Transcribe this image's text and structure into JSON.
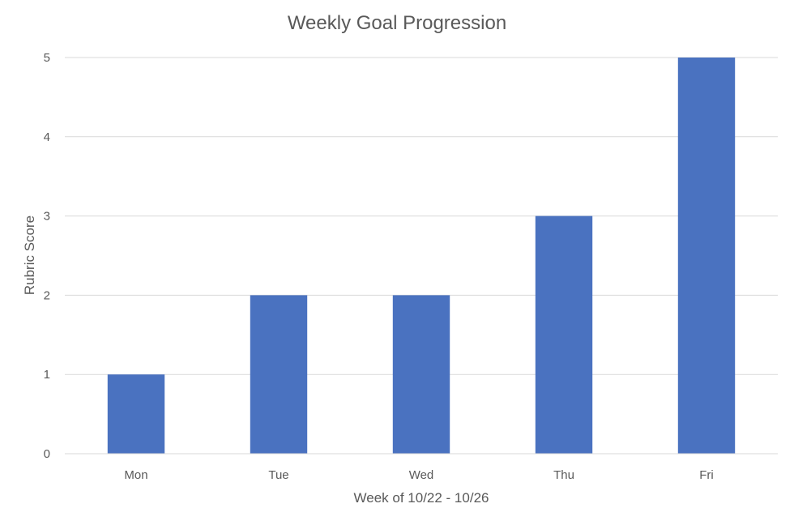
{
  "chart_data": {
    "type": "bar",
    "title": "Weekly Goal Progression",
    "xlabel": "Week of 10/22 - 10/26",
    "ylabel": "Rubric Score",
    "categories": [
      "Mon",
      "Tue",
      "Wed",
      "Thu",
      "Fri"
    ],
    "values": [
      1,
      2,
      2,
      3,
      5
    ],
    "ylim": [
      0,
      5
    ],
    "yticks": [
      "0",
      "1",
      "2",
      "3",
      "4",
      "5"
    ],
    "grid": true,
    "legend": "none",
    "bar_color": "#4a72c0",
    "gridline_color": "#d9d9d9",
    "text_color": "#595959"
  }
}
